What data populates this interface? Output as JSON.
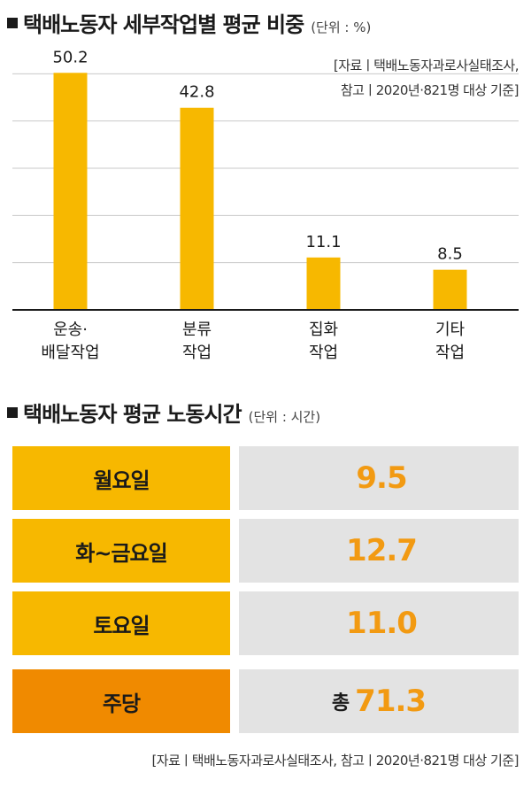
{
  "section1": {
    "title": "택배노동자 세부작업별 평균 비중",
    "unit": "(단위 : %)",
    "source_line1": "[자료ㅣ택배노동자과로사실태조사,",
    "source_line2": "참고ㅣ2020년·821명 대상 기준]"
  },
  "chart_data": {
    "type": "bar",
    "title": "택배노동자 세부작업별 평균 비중",
    "categories": [
      [
        "운송·",
        "배달작업"
      ],
      [
        "분류",
        "작업"
      ],
      [
        "집화",
        "작업"
      ],
      [
        "기타",
        "작업"
      ]
    ],
    "values": [
      50.2,
      42.8,
      11.1,
      8.5
    ],
    "value_labels": [
      "50.2",
      "42.8",
      "11.1",
      "8.5"
    ],
    "ylim": [
      0,
      60
    ],
    "grid": true,
    "bar_color": "#f7b800"
  },
  "section2": {
    "title": "택배노동자 평균 노동시간",
    "unit": "(단위 : 시간)",
    "rows": [
      {
        "label": "월요일",
        "prefix": "",
        "value": "9.5",
        "label_bg": "#f7b800"
      },
      {
        "label": "화~금요일",
        "prefix": "",
        "value": "12.7",
        "label_bg": "#f7b800"
      },
      {
        "label": "토요일",
        "prefix": "",
        "value": "11.0",
        "label_bg": "#f7b800"
      },
      {
        "label": "주당",
        "prefix": "총",
        "value": "71.3",
        "label_bg": "#f08a00"
      }
    ],
    "source": "[자료ㅣ택배노동자과로사실태조사, 참고ㅣ2020년·821명 대상 기준]"
  }
}
